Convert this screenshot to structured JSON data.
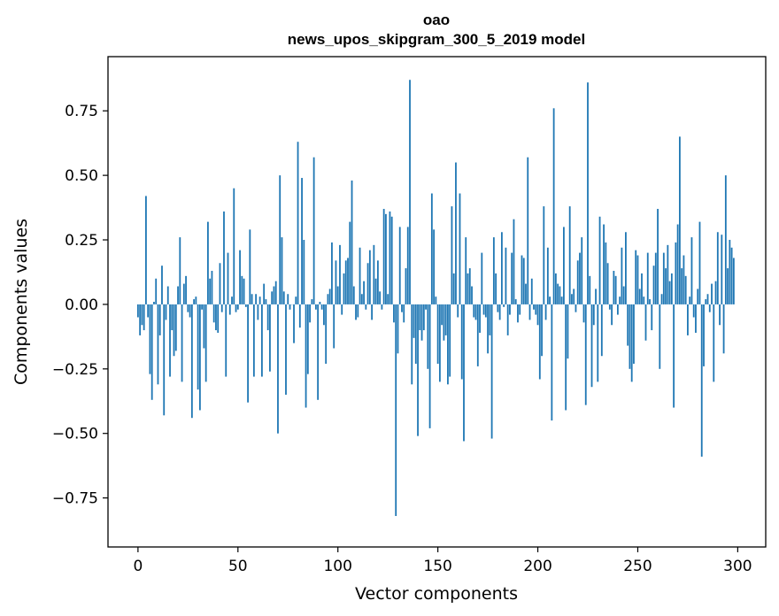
{
  "chart_data": {
    "type": "bar",
    "title": "oao",
    "subtitle": "news_upos_skipgram_300_5_2019 model",
    "xlabel": "Vector components",
    "ylabel": "Components values",
    "xlim": [
      -15,
      314
    ],
    "ylim": [
      -0.94,
      0.96
    ],
    "xticks": [
      0,
      50,
      100,
      150,
      200,
      250,
      300
    ],
    "yticks": [
      -0.75,
      -0.5,
      -0.25,
      0.0,
      0.25,
      0.5,
      0.75
    ],
    "xtick_labels": [
      "0",
      "50",
      "100",
      "150",
      "200",
      "250",
      "300"
    ],
    "ytick_labels": [
      "−0.75",
      "−0.50",
      "−0.25",
      "0.00",
      "0.25",
      "0.50",
      "0.75"
    ],
    "bar_color": "#1f77b4",
    "values": [
      -0.05,
      -0.12,
      -0.08,
      -0.1,
      0.42,
      -0.05,
      -0.27,
      -0.37,
      0.01,
      0.1,
      -0.31,
      -0.12,
      0.15,
      -0.43,
      -0.06,
      0.07,
      -0.28,
      -0.1,
      -0.2,
      -0.18,
      0.07,
      0.26,
      -0.3,
      0.08,
      0.11,
      -0.03,
      -0.05,
      -0.44,
      0.02,
      0.03,
      -0.33,
      -0.41,
      -0.02,
      -0.17,
      -0.3,
      0.32,
      0.1,
      0.13,
      -0.07,
      -0.1,
      -0.11,
      0.16,
      -0.03,
      0.36,
      -0.28,
      0.2,
      -0.04,
      0.03,
      0.45,
      -0.03,
      -0.02,
      0.21,
      0.11,
      0.1,
      -0.01,
      -0.38,
      0.29,
      0.04,
      -0.28,
      0.04,
      -0.06,
      0.03,
      -0.28,
      0.08,
      0.02,
      -0.1,
      -0.26,
      0.05,
      0.07,
      0.09,
      -0.5,
      0.5,
      0.26,
      0.05,
      -0.35,
      0.04,
      -0.02,
      0.0,
      -0.15,
      0.03,
      0.63,
      -0.09,
      0.49,
      0.25,
      -0.4,
      -0.27,
      -0.07,
      0.02,
      0.57,
      -0.02,
      -0.37,
      0.01,
      -0.02,
      -0.08,
      -0.23,
      0.04,
      0.06,
      0.24,
      -0.17,
      0.17,
      0.07,
      0.23,
      -0.04,
      0.12,
      0.17,
      0.18,
      0.32,
      0.48,
      0.07,
      -0.06,
      -0.05,
      0.22,
      0.04,
      0.09,
      -0.02,
      0.16,
      0.21,
      -0.06,
      0.23,
      0.1,
      0.17,
      0.05,
      -0.02,
      0.37,
      0.35,
      0.04,
      0.36,
      0.34,
      -0.07,
      -0.82,
      -0.19,
      0.3,
      -0.03,
      -0.07,
      0.14,
      0.3,
      0.87,
      -0.31,
      -0.13,
      -0.23,
      -0.51,
      -0.1,
      -0.14,
      -0.1,
      -0.02,
      -0.25,
      -0.48,
      0.43,
      0.29,
      0.03,
      -0.23,
      -0.3,
      -0.08,
      -0.14,
      -0.12,
      -0.31,
      -0.28,
      0.38,
      0.12,
      0.55,
      -0.05,
      0.43,
      -0.29,
      -0.53,
      0.26,
      0.12,
      0.14,
      0.07,
      -0.05,
      -0.06,
      -0.24,
      -0.11,
      0.2,
      -0.04,
      -0.05,
      -0.19,
      -0.12,
      -0.52,
      0.26,
      0.12,
      -0.03,
      -0.06,
      0.28,
      -0.01,
      0.22,
      -0.12,
      -0.04,
      0.2,
      0.33,
      0.02,
      -0.07,
      -0.04,
      0.19,
      0.18,
      0.08,
      0.57,
      -0.06,
      0.1,
      -0.02,
      -0.04,
      -0.08,
      -0.29,
      -0.2,
      0.38,
      -0.06,
      0.22,
      0.03,
      -0.45,
      0.76,
      0.12,
      0.08,
      0.07,
      0.03,
      0.3,
      -0.41,
      -0.21,
      0.38,
      0.04,
      0.06,
      -0.03,
      0.17,
      0.2,
      0.26,
      -0.07,
      -0.39,
      0.86,
      0.11,
      -0.32,
      -0.08,
      0.06,
      -0.3,
      0.34,
      -0.2,
      0.31,
      0.24,
      0.16,
      -0.02,
      -0.08,
      0.13,
      0.11,
      -0.04,
      0.03,
      0.22,
      0.07,
      0.28,
      -0.16,
      -0.25,
      -0.3,
      -0.23,
      0.21,
      0.19,
      0.06,
      0.12,
      0.03,
      -0.14,
      0.2,
      0.02,
      -0.1,
      0.15,
      0.2,
      0.37,
      -0.25,
      0.04,
      0.2,
      0.14,
      0.23,
      0.09,
      0.12,
      -0.4,
      0.24,
      0.31,
      0.65,
      0.14,
      0.19,
      0.11,
      -0.12,
      0.03,
      0.26,
      -0.05,
      -0.11,
      0.06,
      0.32,
      -0.59,
      -0.24,
      0.02,
      0.04,
      -0.03,
      0.08,
      -0.3,
      0.09,
      0.28,
      -0.08,
      0.27,
      -0.19,
      0.5,
      0.14,
      0.25,
      0.22,
      0.18
    ]
  }
}
